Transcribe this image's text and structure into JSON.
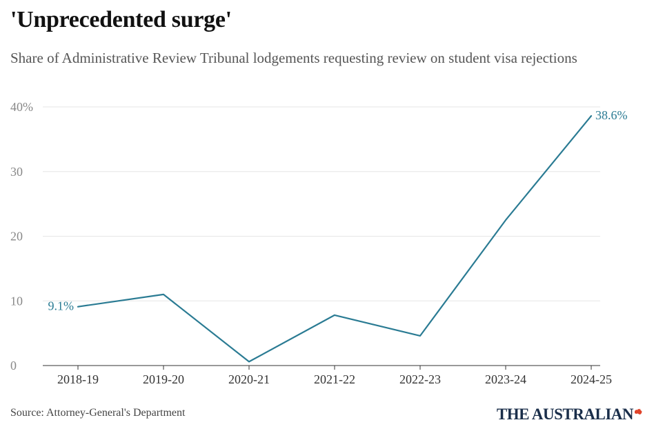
{
  "title": "'Unprecedented surge'",
  "subtitle": "Share of Administrative Review Tribunal lodgements requesting review on student visa rejections",
  "source": "Source: Attorney-General's Department",
  "logo": "THE AUSTRALIAN",
  "colors": {
    "line": "#2a7b93",
    "grid": "#e6e6e6",
    "axis": "#333333",
    "logo": "#1a2e4a",
    "logo_accent": "#e0442b"
  },
  "chart_data": {
    "type": "line",
    "categories": [
      "2018-19",
      "2019-20",
      "2020-21",
      "2021-22",
      "2022-23",
      "2023-24",
      "2024-25"
    ],
    "series": [
      {
        "values": [
          9.1,
          11.0,
          0.6,
          7.8,
          4.6,
          22.5,
          38.6
        ]
      }
    ],
    "ylim": [
      0,
      40
    ],
    "yticks": [
      0,
      10,
      20,
      30,
      40
    ],
    "ytick_labels": [
      "0",
      "10",
      "20",
      "30",
      "40%"
    ],
    "grid": true,
    "annotations": [
      {
        "index": 0,
        "text": "9.1%"
      },
      {
        "index": 6,
        "text": "38.6%"
      }
    ]
  }
}
